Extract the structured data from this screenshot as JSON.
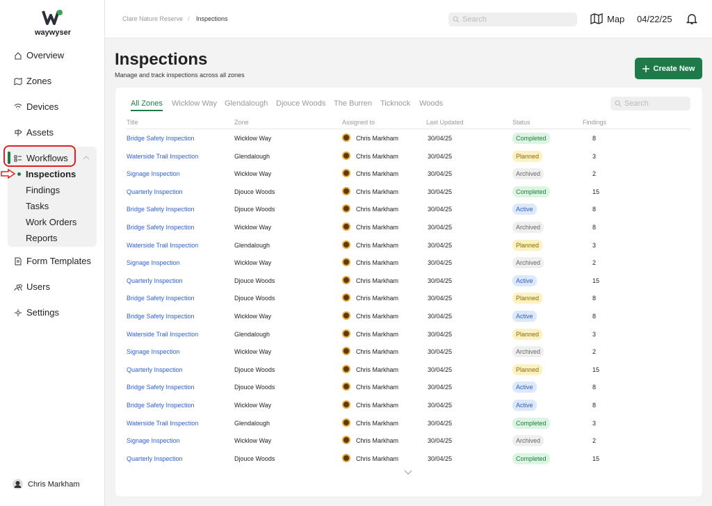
{
  "sidebar": {
    "logo": "waywyser",
    "nav_top": [
      "Overview",
      "Zones",
      "Devices",
      "Assets"
    ],
    "workflows": "Workflows",
    "workflow_items": [
      "Inspections",
      "Findings",
      "Tasks",
      "Work Orders",
      "Reports"
    ],
    "nav_bottom": [
      "Form Templates",
      "Users",
      "Settings"
    ],
    "user": "Chris Markham"
  },
  "topbar": {
    "breadcrumb": [
      "Clare Nature Reserve",
      "/",
      "Inspections"
    ],
    "search": "Search",
    "map": "Map",
    "date": "04/22/25"
  },
  "header": {
    "title": "Inspections",
    "subtitle": "Manage and track inspections across all zones",
    "create": "Create New"
  },
  "tabs": [
    "All Zones",
    "Wicklow Way",
    "Glendalough",
    "Djouce Woods",
    "The Burren",
    "Ticknock",
    "Woods"
  ],
  "table_search": "Search",
  "status_colors": {
    "Completed": [
      "#dcf5e3",
      "#1f7a3f"
    ],
    "Planned": [
      "#fbf1c2",
      "#8a6d00"
    ],
    "Archived": [
      "#efefef",
      "#666666"
    ],
    "Active": [
      "#dde8fb",
      "#2b5fc4"
    ]
  },
  "table": {
    "columns": [
      "Title",
      "Zone",
      "Assigned to",
      "Last Updated",
      "Status",
      "Findings"
    ],
    "rows": [
      [
        "Bridge Safety Inspection",
        "Wicklow Way",
        "Chris Markham",
        "30/04/25",
        "Completed",
        8
      ],
      [
        "Waterside Trail Inspection",
        "Glendalough",
        "Chris Markham",
        "30/04/25",
        "Planned",
        3
      ],
      [
        "Signage Inspection",
        "Wicklow Way",
        "Chris Markham",
        "30/04/25",
        "Archived",
        2
      ],
      [
        "Quarterly Inspection",
        "Djouce Woods",
        "Chris Markham",
        "30/04/25",
        "Completed",
        15
      ],
      [
        "Bridge Safety Inspection",
        "Djouce Woods",
        "Chris Markham",
        "30/04/25",
        "Active",
        8
      ],
      [
        "Bridge Safety Inspection",
        "Wicklow Way",
        "Chris Markham",
        "30/04/25",
        "Archived",
        8
      ],
      [
        "Waterside Trail Inspection",
        "Glendalough",
        "Chris Markham",
        "30/04/25",
        "Planned",
        3
      ],
      [
        "Signage Inspection",
        "Wicklow Way",
        "Chris Markham",
        "30/04/25",
        "Archived",
        2
      ],
      [
        "Quarterly Inspection",
        "Djouce Woods",
        "Chris Markham",
        "30/04/25",
        "Active",
        15
      ],
      [
        "Bridge Safety Inspection",
        "Djouce Woods",
        "Chris Markham",
        "30/04/25",
        "Planned",
        8
      ],
      [
        "Bridge Safety Inspection",
        "Wicklow Way",
        "Chris Markham",
        "30/04/25",
        "Active",
        8
      ],
      [
        "Waterside Trail Inspection",
        "Glendalough",
        "Chris Markham",
        "30/04/25",
        "Planned",
        3
      ],
      [
        "Signage Inspection",
        "Wicklow Way",
        "Chris Markham",
        "30/04/25",
        "Archived",
        2
      ],
      [
        "Quarterly Inspection",
        "Djouce Woods",
        "Chris Markham",
        "30/04/25",
        "Planned",
        15
      ],
      [
        "Bridge Safety Inspection",
        "Djouce Woods",
        "Chris Markham",
        "30/04/25",
        "Active",
        8
      ],
      [
        "Bridge Safety Inspection",
        "Wicklow Way",
        "Chris Markham",
        "30/04/25",
        "Active",
        8
      ],
      [
        "Waterside Trail Inspection",
        "Glendalough",
        "Chris Markham",
        "30/04/25",
        "Completed",
        3
      ],
      [
        "Signage Inspection",
        "Wicklow Way",
        "Chris Markham",
        "30/04/25",
        "Archived",
        2
      ],
      [
        "Quarterly Inspection",
        "Djouce Woods",
        "Chris Markham",
        "30/04/25",
        "Completed",
        15
      ]
    ]
  }
}
